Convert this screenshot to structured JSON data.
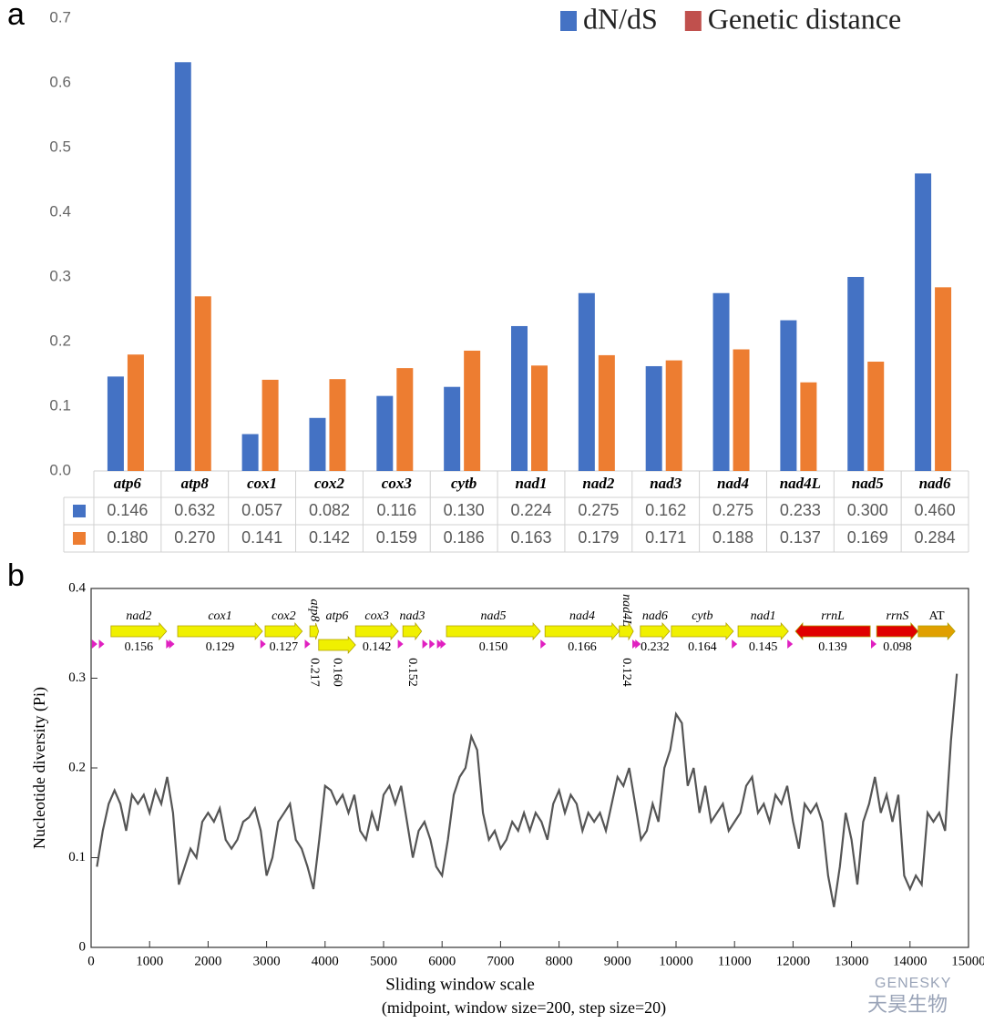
{
  "chart_data": [
    {
      "type": "bar",
      "panel_label": "a",
      "categories": [
        "atp6",
        "atp8",
        "cox1",
        "cox2",
        "cox3",
        "cytb",
        "nad1",
        "nad2",
        "nad3",
        "nad4",
        "nad4L",
        "nad5",
        "nad6"
      ],
      "series": [
        {
          "name": "dN/dS",
          "color": "#4472c4",
          "values": [
            0.146,
            0.632,
            0.057,
            0.082,
            0.116,
            0.13,
            0.224,
            0.275,
            0.162,
            0.275,
            0.233,
            0.3,
            0.46
          ],
          "value_labels": [
            "0.146",
            "0.632",
            "0.057",
            "0.082",
            "0.116",
            "0.130",
            "0.224",
            "0.275",
            "0.162",
            "0.275",
            "0.233",
            "0.300",
            "0.460"
          ]
        },
        {
          "name": "Genetic distance",
          "color": "#ed7d31",
          "legend_color": "#c0504d",
          "values": [
            0.18,
            0.27,
            0.141,
            0.142,
            0.159,
            0.186,
            0.163,
            0.179,
            0.171,
            0.188,
            0.137,
            0.169,
            0.284
          ],
          "value_labels": [
            "0.180",
            "0.270",
            "0.141",
            "0.142",
            "0.159",
            "0.186",
            "0.163",
            "0.179",
            "0.171",
            "0.188",
            "0.137",
            "0.169",
            "0.284"
          ]
        }
      ],
      "ylim": [
        0,
        0.7
      ],
      "yticks": [
        {
          "value": 0,
          "label": "0.0"
        },
        0.1,
        0.2,
        0.3,
        0.4,
        0.5,
        0.6,
        0.7
      ],
      "legend": "top-right",
      "data_table": true
    },
    {
      "type": "line",
      "panel_label": "b",
      "xlabel": [
        "Sliding window scale",
        "(midpoint, window size=200, step size=20)"
      ],
      "ylabel": "Nucleotide diversity (Pi)",
      "xlim": [
        0,
        15000
      ],
      "xticks": [
        0,
        1000,
        2000,
        3000,
        4000,
        5000,
        6000,
        7000,
        8000,
        9000,
        10000,
        11000,
        12000,
        13000,
        14000,
        15000
      ],
      "ylim": [
        0,
        0.4
      ],
      "yticks": [
        0,
        0.1,
        0.2,
        0.3,
        0.4
      ],
      "color": "#555555",
      "x": [
        100,
        200,
        300,
        400,
        500,
        600,
        700,
        800,
        900,
        1000,
        1100,
        1200,
        1300,
        1400,
        1500,
        1600,
        1700,
        1800,
        1900,
        2000,
        2100,
        2200,
        2300,
        2400,
        2500,
        2600,
        2700,
        2800,
        2900,
        3000,
        3100,
        3200,
        3300,
        3400,
        3500,
        3600,
        3700,
        3800,
        3900,
        4000,
        4100,
        4200,
        4300,
        4400,
        4500,
        4600,
        4700,
        4800,
        4900,
        5000,
        5100,
        5200,
        5300,
        5400,
        5500,
        5600,
        5700,
        5800,
        5900,
        6000,
        6100,
        6200,
        6300,
        6400,
        6500,
        6600,
        6700,
        6800,
        6900,
        7000,
        7100,
        7200,
        7300,
        7400,
        7500,
        7600,
        7700,
        7800,
        7900,
        8000,
        8100,
        8200,
        8300,
        8400,
        8500,
        8600,
        8700,
        8800,
        8900,
        9000,
        9100,
        9200,
        9300,
        9400,
        9500,
        9600,
        9700,
        9800,
        9900,
        10000,
        10100,
        10200,
        10300,
        10400,
        10500,
        10600,
        10700,
        10800,
        10900,
        11000,
        11100,
        11200,
        11300,
        11400,
        11500,
        11600,
        11700,
        11800,
        11900,
        12000,
        12100,
        12200,
        12300,
        12400,
        12500,
        12600,
        12700,
        12800,
        12900,
        13000,
        13100,
        13200,
        13300,
        13400,
        13500,
        13600,
        13700,
        13800,
        13900,
        14000,
        14100,
        14200,
        14300,
        14400,
        14500,
        14600,
        14700,
        14800
      ],
      "values": [
        0.09,
        0.13,
        0.16,
        0.175,
        0.16,
        0.13,
        0.17,
        0.16,
        0.17,
        0.15,
        0.175,
        0.16,
        0.19,
        0.15,
        0.07,
        0.09,
        0.11,
        0.1,
        0.14,
        0.15,
        0.14,
        0.155,
        0.12,
        0.11,
        0.12,
        0.14,
        0.145,
        0.155,
        0.13,
        0.08,
        0.1,
        0.14,
        0.15,
        0.16,
        0.12,
        0.11,
        0.09,
        0.065,
        0.12,
        0.18,
        0.175,
        0.16,
        0.17,
        0.15,
        0.17,
        0.13,
        0.12,
        0.15,
        0.13,
        0.17,
        0.18,
        0.16,
        0.18,
        0.14,
        0.1,
        0.13,
        0.14,
        0.12,
        0.09,
        0.08,
        0.12,
        0.17,
        0.19,
        0.2,
        0.235,
        0.22,
        0.15,
        0.12,
        0.13,
        0.11,
        0.12,
        0.14,
        0.13,
        0.15,
        0.13,
        0.15,
        0.14,
        0.12,
        0.16,
        0.175,
        0.15,
        0.17,
        0.16,
        0.13,
        0.15,
        0.14,
        0.15,
        0.13,
        0.16,
        0.19,
        0.18,
        0.2,
        0.16,
        0.12,
        0.13,
        0.16,
        0.14,
        0.2,
        0.22,
        0.26,
        0.25,
        0.18,
        0.2,
        0.15,
        0.18,
        0.14,
        0.15,
        0.16,
        0.13,
        0.14,
        0.15,
        0.18,
        0.19,
        0.15,
        0.16,
        0.14,
        0.17,
        0.16,
        0.18,
        0.14,
        0.11,
        0.16,
        0.15,
        0.16,
        0.14,
        0.08,
        0.045,
        0.09,
        0.15,
        0.12,
        0.07,
        0.14,
        0.16,
        0.19,
        0.15,
        0.17,
        0.14,
        0.17,
        0.08,
        0.065,
        0.08,
        0.07,
        0.15,
        0.14,
        0.15,
        0.13,
        0.23,
        0.305
      ],
      "genes": [
        {
          "name": "nad2",
          "pi": "0.156",
          "start": 340,
          "end": 1290,
          "color": "#f0f000"
        },
        {
          "name": "cox1",
          "pi": "0.129",
          "start": 1480,
          "end": 2930,
          "color": "#f0f000"
        },
        {
          "name": "cox2",
          "pi": "0.127",
          "start": 2975,
          "end": 3610,
          "color": "#f0f000"
        },
        {
          "name": "atp8",
          "pi": "0.217",
          "start": 3740,
          "end": 3890,
          "color": "#f0f000",
          "label_vertical": true,
          "pi_vertical": true
        },
        {
          "name": "atp6",
          "pi": "0.160",
          "start": 3890,
          "end": 4520,
          "color": "#f0f000",
          "lane": 2,
          "pi_vertical": true
        },
        {
          "name": "cox3",
          "pi": "0.142",
          "start": 4520,
          "end": 5250,
          "color": "#f0f000"
        },
        {
          "name": "nad3",
          "pi": "0.152",
          "start": 5330,
          "end": 5650,
          "color": "#f0f000",
          "pi_vertical": true
        },
        {
          "name": "nad5",
          "pi": "0.150",
          "start": 6075,
          "end": 7680,
          "color": "#f0f000"
        },
        {
          "name": "nad4",
          "pi": "0.166",
          "start": 7760,
          "end": 9030,
          "color": "#f0f000"
        },
        {
          "name": "nad4L",
          "pi": "0.124",
          "start": 9030,
          "end": 9270,
          "color": "#f0f000",
          "label_vertical": true,
          "pi_vertical": true
        },
        {
          "name": "nad6",
          "pi": "0.232",
          "start": 9390,
          "end": 9890,
          "color": "#f0f000"
        },
        {
          "name": "cytb",
          "pi": "0.164",
          "start": 9920,
          "end": 10980,
          "color": "#f0f000"
        },
        {
          "name": "nad1",
          "pi": "0.145",
          "start": 11060,
          "end": 11920,
          "color": "#f0f000"
        },
        {
          "name": "rrnL",
          "pi": "0.139",
          "start": 12040,
          "end": 13320,
          "color": "#e00000",
          "reverse": true
        },
        {
          "name": "rrnS",
          "pi": "0.098",
          "start": 13430,
          "end": 14140,
          "color": "#e00000"
        },
        {
          "name": "AT",
          "start": 14140,
          "end": 14770,
          "color": "#e0a000",
          "upright": true
        }
      ],
      "trna_x": [
        60,
        180,
        1330,
        1380,
        2940,
        3700,
        5290,
        5710,
        5830,
        5960,
        6020,
        7730,
        9300,
        9350,
        11000,
        11950,
        13380
      ],
      "trna_color": "#e020c0"
    }
  ],
  "watermark": {
    "brand": "GENESKY",
    "brand_cn": "天昊生物"
  }
}
